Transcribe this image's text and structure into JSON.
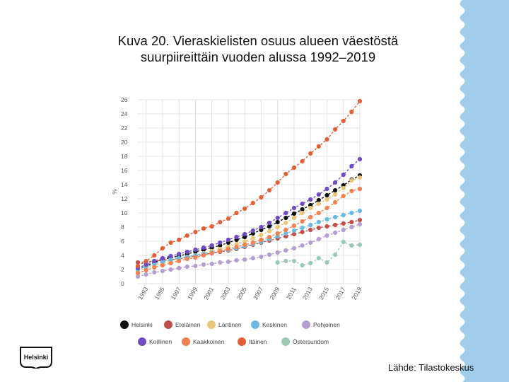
{
  "page": {
    "title_line1": "Kuva 20. Vieraskielisten osuus alueen väestöstä",
    "title_line2": "suurpiireittäin vuoden alussa 1992–2019",
    "source": "Lähde: Tilastokeskus",
    "logo_text": "Helsinki",
    "decoration_color": "#9fcdea"
  },
  "chart_data": {
    "type": "line",
    "title": "",
    "xlabel": "",
    "ylabel": "%",
    "x": [
      1992,
      1993,
      1994,
      1995,
      1996,
      1997,
      1998,
      1999,
      2000,
      2001,
      2002,
      2003,
      2004,
      2005,
      2006,
      2007,
      2008,
      2009,
      2010,
      2011,
      2012,
      2013,
      2014,
      2015,
      2016,
      2017,
      2018,
      2019
    ],
    "x_tick_labels": [
      "1993",
      "1995",
      "1997",
      "1999",
      "2001",
      "2003",
      "2005",
      "2007",
      "2009",
      "2011",
      "2013",
      "2015",
      "2017",
      "2019"
    ],
    "y_ticks": [
      0,
      2,
      4,
      6,
      8,
      10,
      12,
      14,
      16,
      18,
      20,
      22,
      24,
      26
    ],
    "ylim": [
      0,
      26
    ],
    "grid": true,
    "legend_position": "bottom",
    "series": [
      {
        "name": "Helsinki",
        "color": "#111111",
        "values": [
          2.0,
          2.5,
          3.0,
          3.4,
          3.7,
          3.9,
          4.2,
          4.5,
          4.8,
          5.1,
          5.4,
          5.8,
          6.2,
          6.6,
          7.1,
          7.6,
          8.1,
          8.7,
          9.3,
          9.9,
          10.5,
          11.1,
          11.8,
          12.5,
          13.2,
          13.9,
          14.7,
          15.3
        ]
      },
      {
        "name": "Eteläinen",
        "color": "#c0504d",
        "values": [
          3.0,
          3.1,
          3.2,
          3.3,
          3.4,
          3.5,
          3.7,
          3.9,
          4.1,
          4.3,
          4.5,
          4.7,
          4.9,
          5.2,
          5.5,
          5.8,
          6.1,
          6.4,
          6.7,
          7.0,
          7.3,
          7.6,
          7.9,
          8.1,
          8.3,
          8.5,
          8.7,
          9.0
        ]
      },
      {
        "name": "Läntinen",
        "color": "#e8c77a",
        "values": [
          1.8,
          2.2,
          2.6,
          2.9,
          3.2,
          3.5,
          3.8,
          4.0,
          4.3,
          4.6,
          4.9,
          5.2,
          5.6,
          6.0,
          6.4,
          6.9,
          7.4,
          8.0,
          8.6,
          9.3,
          10.0,
          10.7,
          11.3,
          11.9,
          12.6,
          13.5,
          14.6,
          15.0
        ]
      },
      {
        "name": "Keskinen",
        "color": "#6bb9de",
        "values": [
          2.0,
          2.4,
          2.8,
          3.1,
          3.4,
          3.6,
          3.8,
          4.0,
          4.2,
          4.4,
          4.6,
          4.8,
          5.0,
          5.3,
          5.6,
          5.9,
          6.3,
          6.7,
          7.1,
          7.5,
          7.9,
          8.3,
          8.7,
          9.1,
          9.4,
          9.7,
          10.0,
          10.3
        ]
      },
      {
        "name": "Pohjoinen",
        "color": "#b49fce",
        "values": [
          1.0,
          1.3,
          1.6,
          1.8,
          2.0,
          2.2,
          2.4,
          2.5,
          2.7,
          2.8,
          3.0,
          3.1,
          3.3,
          3.4,
          3.6,
          3.8,
          4.1,
          4.4,
          4.7,
          5.0,
          5.4,
          5.8,
          6.3,
          6.8,
          7.2,
          7.6,
          8.0,
          8.4
        ]
      },
      {
        "name": "Koillinen",
        "color": "#6f4cc4",
        "values": [
          2.2,
          2.7,
          3.2,
          3.6,
          3.9,
          4.2,
          4.5,
          4.8,
          5.1,
          5.4,
          5.8,
          6.2,
          6.6,
          7.0,
          7.5,
          8.0,
          8.6,
          9.3,
          10.0,
          10.7,
          11.3,
          11.9,
          12.6,
          13.4,
          14.3,
          15.4,
          16.6,
          17.6
        ]
      },
      {
        "name": "Kaakkoinen",
        "color": "#f08050",
        "values": [
          1.5,
          1.9,
          2.3,
          2.6,
          2.9,
          3.2,
          3.5,
          3.7,
          4.0,
          4.3,
          4.6,
          4.9,
          5.2,
          5.5,
          5.8,
          6.2,
          6.6,
          7.1,
          7.6,
          8.2,
          8.8,
          9.4,
          10.0,
          10.7,
          11.5,
          12.4,
          13.1,
          13.4
        ]
      },
      {
        "name": "Itäinen",
        "color": "#e0603a",
        "values": [
          2.5,
          3.2,
          4.0,
          5.0,
          5.8,
          6.2,
          6.8,
          7.3,
          7.8,
          8.1,
          8.7,
          9.2,
          10.0,
          10.6,
          11.4,
          12.2,
          13.2,
          14.3,
          15.5,
          16.4,
          17.3,
          18.4,
          19.4,
          20.4,
          21.8,
          23.0,
          24.3,
          25.8
        ]
      },
      {
        "name": "Östersundom",
        "color": "#9cc9b4",
        "values": [
          null,
          null,
          null,
          null,
          null,
          null,
          null,
          null,
          null,
          null,
          null,
          null,
          null,
          null,
          null,
          null,
          null,
          3.0,
          3.2,
          3.2,
          2.6,
          2.9,
          3.6,
          3.0,
          4.1,
          5.9,
          5.4,
          5.5
        ]
      }
    ]
  }
}
